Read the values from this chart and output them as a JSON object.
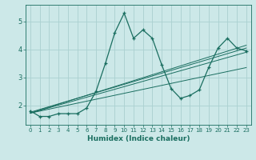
{
  "xlabel": "Humidex (Indice chaleur)",
  "ylabel": "",
  "bg_color": "#cce8e8",
  "line_color": "#1a6e60",
  "grid_color": "#aad0d0",
  "xlim": [
    -0.5,
    23.5
  ],
  "ylim": [
    1.3,
    5.6
  ],
  "x_data": [
    0,
    1,
    2,
    3,
    4,
    5,
    6,
    7,
    8,
    9,
    10,
    11,
    12,
    13,
    14,
    15,
    16,
    17,
    18,
    19,
    20,
    21,
    22,
    23
  ],
  "y_data": [
    1.8,
    1.6,
    1.6,
    1.7,
    1.7,
    1.7,
    1.9,
    2.5,
    3.5,
    4.6,
    5.3,
    4.4,
    4.7,
    4.4,
    3.45,
    2.6,
    2.25,
    2.35,
    2.55,
    3.35,
    4.05,
    4.4,
    4.05,
    3.95
  ],
  "trend1_x": [
    0,
    23
  ],
  "trend1_y": [
    1.75,
    4.05
  ],
  "trend2_x": [
    0,
    23
  ],
  "trend2_y": [
    1.72,
    3.35
  ],
  "trend3_x": [
    0,
    23
  ],
  "trend3_y": [
    1.72,
    3.9
  ],
  "trend4_x": [
    0,
    23
  ],
  "trend4_y": [
    1.72,
    4.15
  ],
  "xticks": [
    0,
    1,
    2,
    3,
    4,
    5,
    6,
    7,
    8,
    9,
    10,
    11,
    12,
    13,
    14,
    15,
    16,
    17,
    18,
    19,
    20,
    21,
    22,
    23
  ],
  "yticks": [
    2,
    3,
    4,
    5
  ]
}
